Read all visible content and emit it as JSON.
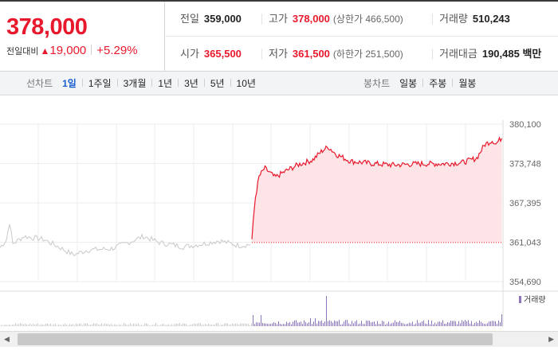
{
  "price": {
    "current": "378,000",
    "change_label": "전일대비",
    "change_arrow": "▲",
    "change_amount": "19,000",
    "change_percent": "+5.29%"
  },
  "stats": {
    "row1": [
      {
        "key": "전일",
        "value": "359,000",
        "color": "dark"
      },
      {
        "key": "고가",
        "value": "378,000",
        "sub": "(상한가 466,500)",
        "color": "red"
      },
      {
        "key": "거래량",
        "value": "510,243",
        "color": "dark"
      }
    ],
    "row2": [
      {
        "key": "시가",
        "value": "365,500",
        "color": "red"
      },
      {
        "key": "저가",
        "value": "361,500",
        "sub": "(하한가 251,500)",
        "color": "red"
      },
      {
        "key": "거래대금",
        "value": "190,485 백만",
        "color": "dark"
      }
    ]
  },
  "tabs": {
    "line_title": "선차트",
    "line_tabs": [
      "1일",
      "1주일",
      "3개월",
      "1년",
      "3년",
      "5년",
      "10년"
    ],
    "line_active": "1일",
    "candle_title": "봉차트",
    "candle_tabs": [
      "일봉",
      "주봉",
      "월봉"
    ]
  },
  "chart_data": {
    "type": "line",
    "y_ticks": [
      "380,100",
      "373,748",
      "367,395",
      "361,043",
      "354,690"
    ],
    "ylim": [
      354690,
      380100
    ],
    "previous_close": 359000,
    "open": 365500,
    "high": 378000,
    "low": 361500,
    "close": 378000,
    "volume_label": "거래량",
    "colors": {
      "up_line": "#e8192c",
      "up_fill": "#fde5e7",
      "prev_line": "#c9c9c9",
      "volume": "#8a76b8"
    }
  },
  "scrollbar": {
    "left_arrow": "◀",
    "right_arrow": "▶"
  }
}
